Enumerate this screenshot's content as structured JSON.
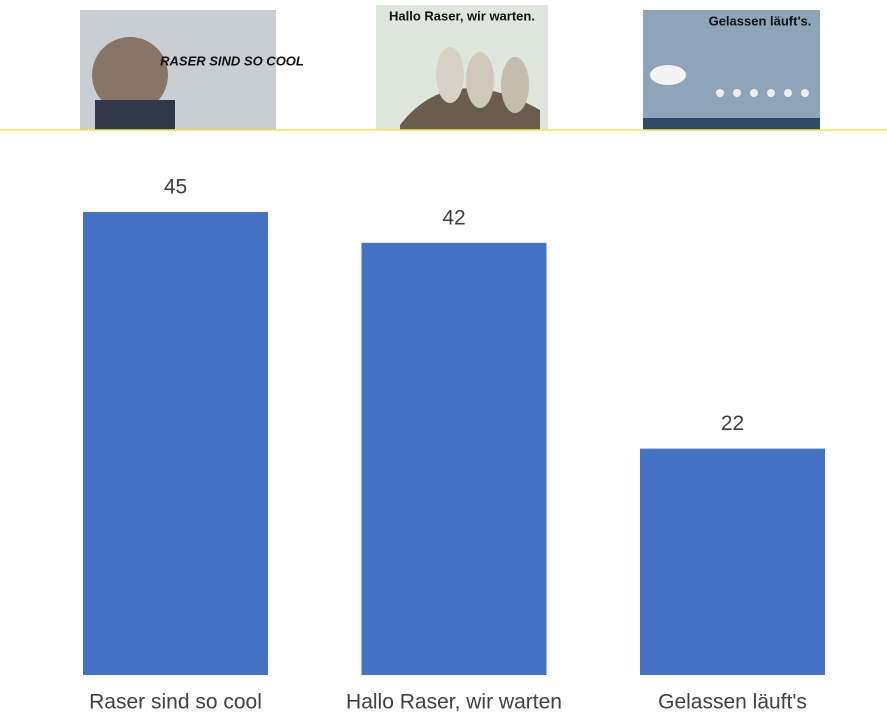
{
  "chart_data": {
    "type": "bar",
    "categories": [
      "Raser sind so cool",
      "Hallo Raser, wir warten",
      "Gelassen läuft's"
    ],
    "values": [
      45,
      42,
      22
    ],
    "color": "#4472c4",
    "poster_texts": [
      "RASER SIND SO COOL",
      "Hallo Raser, wir warten.",
      "Gelassen läuft's."
    ]
  }
}
